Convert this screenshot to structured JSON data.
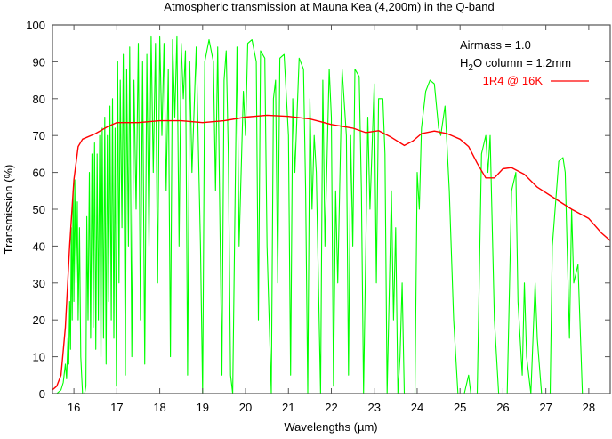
{
  "chart_data": {
    "type": "line",
    "title": "Atmospheric transmission at Mauna Kea (4,200m) in the Q-band",
    "xlabel": "Wavelengths (µm)",
    "ylabel": "Transmission (%)",
    "xlim": [
      15.5,
      28.5
    ],
    "ylim": [
      0,
      100
    ],
    "xticks": [
      "16",
      "17",
      "18",
      "19",
      "20",
      "21",
      "22",
      "23",
      "24",
      "25",
      "26",
      "27",
      "28"
    ],
    "yticks": [
      "0",
      "10",
      "20",
      "30",
      "40",
      "50",
      "60",
      "70",
      "80",
      "90",
      "100"
    ],
    "grid": false,
    "annotations": {
      "airmass": "Airmass = 1.0",
      "h2o_prefix": "H",
      "h2o_sub": "2",
      "h2o_suffix": "O column = 1.2mm"
    },
    "legend_placement": "top-right",
    "series": [
      {
        "name": "1R4 @ 16K",
        "color": "#ff0000",
        "in_legend": true,
        "points": [
          [
            15.5,
            1
          ],
          [
            15.6,
            2
          ],
          [
            15.7,
            5
          ],
          [
            15.8,
            18
          ],
          [
            15.9,
            40
          ],
          [
            16.0,
            58
          ],
          [
            16.1,
            67
          ],
          [
            16.2,
            69
          ],
          [
            16.5,
            70.5
          ],
          [
            16.8,
            72.5
          ],
          [
            17.0,
            73.5
          ],
          [
            17.5,
            73.5
          ],
          [
            18.0,
            74
          ],
          [
            18.5,
            74
          ],
          [
            19.0,
            73.5
          ],
          [
            19.5,
            74
          ],
          [
            20.0,
            75
          ],
          [
            20.5,
            75.5
          ],
          [
            21.0,
            75.2
          ],
          [
            21.5,
            74.5
          ],
          [
            22.0,
            73
          ],
          [
            22.5,
            72
          ],
          [
            22.8,
            70.8
          ],
          [
            23.1,
            71.3
          ],
          [
            23.4,
            69.5
          ],
          [
            23.7,
            67.3
          ],
          [
            23.9,
            68.5
          ],
          [
            24.1,
            70.5
          ],
          [
            24.4,
            71.2
          ],
          [
            24.7,
            70.5
          ],
          [
            25.0,
            69
          ],
          [
            25.2,
            67
          ],
          [
            25.4,
            62.5
          ],
          [
            25.6,
            58.5
          ],
          [
            25.8,
            58.5
          ],
          [
            26.0,
            61
          ],
          [
            26.2,
            61.3
          ],
          [
            26.5,
            59.5
          ],
          [
            26.8,
            56
          ],
          [
            27.2,
            53
          ],
          [
            27.6,
            50
          ],
          [
            28.0,
            47.5
          ],
          [
            28.3,
            43.5
          ],
          [
            28.5,
            41.5
          ]
        ]
      },
      {
        "name": "Atmospheric transmission",
        "color": "#00ff00",
        "in_legend": false,
        "points": [
          [
            15.5,
            0
          ],
          [
            15.6,
            0
          ],
          [
            15.7,
            1
          ],
          [
            15.75,
            3
          ],
          [
            15.8,
            8
          ],
          [
            15.83,
            4
          ],
          [
            15.86,
            15
          ],
          [
            15.88,
            8
          ],
          [
            15.9,
            25
          ],
          [
            15.92,
            12
          ],
          [
            15.94,
            45
          ],
          [
            15.96,
            20
          ],
          [
            15.98,
            55
          ],
          [
            16.0,
            25
          ],
          [
            16.02,
            58
          ],
          [
            16.05,
            30
          ],
          [
            16.08,
            52
          ],
          [
            16.1,
            20
          ],
          [
            16.13,
            45
          ],
          [
            16.16,
            10
          ],
          [
            16.2,
            0
          ],
          [
            16.25,
            0
          ],
          [
            16.28,
            2
          ],
          [
            16.3,
            48
          ],
          [
            16.33,
            20
          ],
          [
            16.36,
            60
          ],
          [
            16.39,
            15
          ],
          [
            16.42,
            65
          ],
          [
            16.45,
            18
          ],
          [
            16.48,
            68
          ],
          [
            16.51,
            12
          ],
          [
            16.54,
            65
          ],
          [
            16.57,
            20
          ],
          [
            16.6,
            70
          ],
          [
            16.63,
            10
          ],
          [
            16.66,
            72
          ],
          [
            16.69,
            15
          ],
          [
            16.72,
            75
          ],
          [
            16.75,
            8
          ],
          [
            16.78,
            70
          ],
          [
            16.81,
            25
          ],
          [
            16.84,
            78
          ],
          [
            16.87,
            20
          ],
          [
            16.9,
            80
          ],
          [
            16.93,
            15
          ],
          [
            16.96,
            72
          ],
          [
            16.99,
            2
          ],
          [
            17.02,
            90
          ],
          [
            17.05,
            30
          ],
          [
            17.08,
            85
          ],
          [
            17.12,
            45
          ],
          [
            17.15,
            92
          ],
          [
            17.2,
            5
          ],
          [
            17.23,
            88
          ],
          [
            17.27,
            40
          ],
          [
            17.3,
            94
          ],
          [
            17.35,
            10
          ],
          [
            17.4,
            85
          ],
          [
            17.45,
            50
          ],
          [
            17.5,
            95
          ],
          [
            17.55,
            20
          ],
          [
            17.6,
            90
          ],
          [
            17.65,
            8
          ],
          [
            17.7,
            92
          ],
          [
            17.75,
            40
          ],
          [
            17.8,
            97
          ],
          [
            17.85,
            60
          ],
          [
            17.9,
            95
          ],
          [
            17.95,
            30
          ],
          [
            18.0,
            97
          ],
          [
            18.05,
            70
          ],
          [
            18.1,
            95
          ],
          [
            18.15,
            55
          ],
          [
            18.2,
            88
          ],
          [
            18.25,
            10
          ],
          [
            18.3,
            96
          ],
          [
            18.35,
            75
          ],
          [
            18.4,
            97
          ],
          [
            18.45,
            40
          ],
          [
            18.5,
            95
          ],
          [
            18.55,
            80
          ],
          [
            18.6,
            93
          ],
          [
            18.65,
            5
          ],
          [
            18.7,
            90
          ],
          [
            18.75,
            60
          ],
          [
            18.85,
            94
          ],
          [
            18.95,
            40
          ],
          [
            19.0,
            0
          ],
          [
            19.05,
            90
          ],
          [
            19.15,
            96
          ],
          [
            19.25,
            90
          ],
          [
            19.3,
            55
          ],
          [
            19.35,
            94
          ],
          [
            19.45,
            5
          ],
          [
            19.5,
            85
          ],
          [
            19.55,
            93
          ],
          [
            19.6,
            65
          ],
          [
            19.65,
            5
          ],
          [
            19.7,
            0
          ],
          [
            19.8,
            94
          ],
          [
            19.85,
            40
          ],
          [
            19.95,
            82
          ],
          [
            20.0,
            70
          ],
          [
            20.05,
            95
          ],
          [
            20.15,
            96
          ],
          [
            20.25,
            90
          ],
          [
            20.3,
            20
          ],
          [
            20.35,
            93
          ],
          [
            20.45,
            91
          ],
          [
            20.5,
            40
          ],
          [
            20.6,
            0
          ],
          [
            20.65,
            80
          ],
          [
            20.7,
            85
          ],
          [
            20.75,
            30
          ],
          [
            20.8,
            91
          ],
          [
            20.9,
            92
          ],
          [
            21.0,
            70
          ],
          [
            21.05,
            5
          ],
          [
            21.1,
            80
          ],
          [
            21.15,
            60
          ],
          [
            21.25,
            91
          ],
          [
            21.35,
            88
          ],
          [
            21.4,
            55
          ],
          [
            21.45,
            0
          ],
          [
            21.5,
            80
          ],
          [
            21.55,
            50
          ],
          [
            21.6,
            70
          ],
          [
            21.65,
            60
          ],
          [
            21.75,
            0
          ],
          [
            21.8,
            85
          ],
          [
            21.85,
            40
          ],
          [
            21.95,
            88
          ],
          [
            22.0,
            75
          ],
          [
            22.05,
            2
          ],
          [
            22.1,
            55
          ],
          [
            22.15,
            30
          ],
          [
            22.25,
            88
          ],
          [
            22.35,
            70
          ],
          [
            22.4,
            5
          ],
          [
            22.45,
            70
          ],
          [
            22.5,
            40
          ],
          [
            22.55,
            88
          ],
          [
            22.65,
            86
          ],
          [
            22.7,
            55
          ],
          [
            22.75,
            0
          ],
          [
            22.85,
            75
          ],
          [
            22.9,
            50
          ],
          [
            23.0,
            84
          ],
          [
            23.05,
            30
          ],
          [
            23.1,
            80
          ],
          [
            23.2,
            80
          ],
          [
            23.25,
            65
          ],
          [
            23.3,
            0
          ],
          [
            23.4,
            55
          ],
          [
            23.45,
            20
          ],
          [
            23.5,
            45
          ],
          [
            23.55,
            0
          ],
          [
            23.6,
            10
          ],
          [
            23.65,
            30
          ],
          [
            23.7,
            0
          ],
          [
            23.8,
            0
          ],
          [
            23.95,
            0
          ],
          [
            24.0,
            60
          ],
          [
            24.05,
            50
          ],
          [
            24.1,
            72
          ],
          [
            24.2,
            82
          ],
          [
            24.3,
            85
          ],
          [
            24.4,
            84
          ],
          [
            24.5,
            72
          ],
          [
            24.55,
            70
          ],
          [
            24.65,
            78
          ],
          [
            24.75,
            55
          ],
          [
            24.85,
            20
          ],
          [
            24.95,
            0
          ],
          [
            25.0,
            0
          ],
          [
            25.1,
            0
          ],
          [
            25.2,
            5
          ],
          [
            25.25,
            0
          ],
          [
            25.4,
            0
          ],
          [
            25.5,
            65
          ],
          [
            25.6,
            70
          ],
          [
            25.65,
            60
          ],
          [
            25.7,
            70
          ],
          [
            25.8,
            20
          ],
          [
            25.9,
            0
          ],
          [
            26.1,
            0
          ],
          [
            26.2,
            55
          ],
          [
            26.3,
            60
          ],
          [
            26.35,
            25
          ],
          [
            26.45,
            5
          ],
          [
            26.5,
            30
          ],
          [
            26.55,
            10
          ],
          [
            26.65,
            0
          ],
          [
            26.75,
            30
          ],
          [
            26.8,
            15
          ],
          [
            26.9,
            0
          ],
          [
            27.1,
            0
          ],
          [
            27.15,
            40
          ],
          [
            27.3,
            63
          ],
          [
            27.4,
            64
          ],
          [
            27.45,
            60
          ],
          [
            27.55,
            15
          ],
          [
            27.6,
            50
          ],
          [
            27.65,
            30
          ],
          [
            27.75,
            35
          ],
          [
            27.85,
            0
          ],
          [
            28.5,
            0
          ]
        ]
      }
    ]
  }
}
